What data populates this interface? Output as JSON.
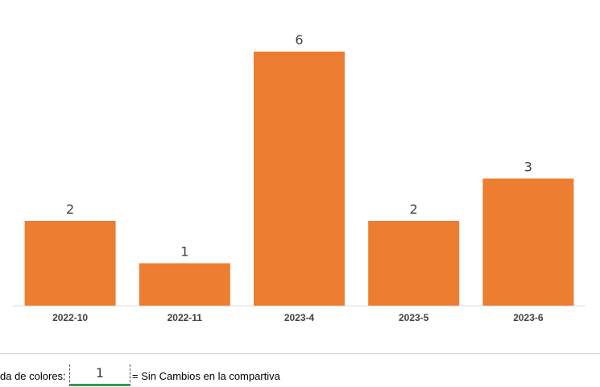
{
  "chart_data": {
    "type": "bar",
    "categories": [
      "2022-10",
      "2022-11",
      "2023-4",
      "2023-5",
      "2023-6"
    ],
    "values": [
      2,
      1,
      6,
      2,
      3
    ],
    "title": "",
    "xlabel": "",
    "ylabel": "",
    "ylim": [
      0,
      6
    ],
    "grid": false,
    "bar_color": "#ED7D31",
    "data_labels": true
  },
  "legend": {
    "prefix": "da de colores:",
    "swatch_value": "1",
    "description": "= Sin Cambios en la compartiva",
    "underline_color": "#2E9E4F"
  }
}
